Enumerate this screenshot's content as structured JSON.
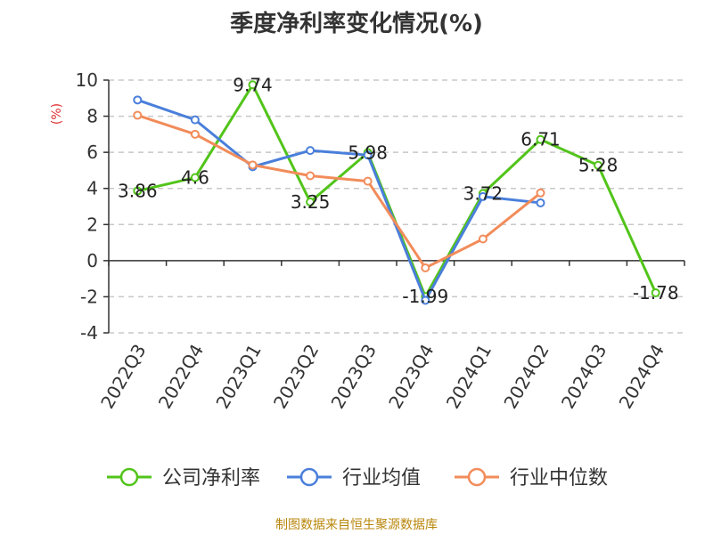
{
  "chart_data": {
    "type": "line",
    "title": "季度净利率变化情况(%)",
    "ylabel": "(%)",
    "xlabel": "",
    "categories": [
      "2022Q3",
      "2022Q4",
      "2023Q1",
      "2023Q2",
      "2023Q3",
      "2023Q4",
      "2024Q1",
      "2024Q2",
      "2024Q3",
      "2024Q4"
    ],
    "ylim": [
      -4,
      10
    ],
    "yticks": [
      -4,
      -2,
      0,
      2,
      4,
      6,
      8,
      10
    ],
    "grid": true,
    "legend_position": "bottom",
    "series": [
      {
        "name": "公司净利率",
        "color": "#52c41a",
        "values": [
          3.86,
          4.6,
          9.74,
          3.25,
          5.98,
          -1.99,
          3.72,
          6.71,
          5.28,
          -1.78
        ],
        "labels": [
          "3.86",
          "4.6",
          "9.74",
          "3.25",
          "5.98",
          "-1.99",
          "3.72",
          "6.71",
          "5.28",
          "-1.78"
        ]
      },
      {
        "name": "行业均值",
        "color": "#4a7fdb",
        "values": [
          8.9,
          7.8,
          5.2,
          6.1,
          5.85,
          -2.2,
          3.55,
          3.2,
          null,
          null
        ]
      },
      {
        "name": "行业中位数",
        "color": "#f28c5a",
        "values": [
          8.05,
          7.0,
          5.3,
          4.7,
          4.4,
          -0.4,
          1.2,
          3.75,
          null,
          null
        ]
      }
    ],
    "source": "制图数据来自恒生聚源数据库"
  }
}
